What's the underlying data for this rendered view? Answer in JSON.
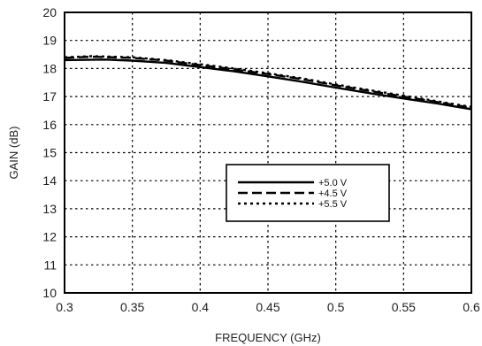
{
  "chart_data": {
    "type": "line",
    "title": "",
    "xlabel": "FREQUENCY (GHz)",
    "ylabel": "GAIN (dB)",
    "xlim": [
      0.3,
      0.6
    ],
    "ylim": [
      10,
      20
    ],
    "xticks": [
      0.3,
      0.35,
      0.4,
      0.45,
      0.5,
      0.55,
      0.6
    ],
    "xtick_labels": [
      "0.3",
      "0.35",
      "0.4",
      "0.45",
      "0.5",
      "0.55",
      "0.6"
    ],
    "yticks": [
      10,
      11,
      12,
      13,
      14,
      15,
      16,
      17,
      18,
      19,
      20
    ],
    "ytick_labels": [
      "10",
      "11",
      "12",
      "13",
      "14",
      "15",
      "16",
      "17",
      "18",
      "19",
      "20"
    ],
    "grid": "dotted",
    "legend_position": "center-right",
    "series": [
      {
        "name": "+5.0 V",
        "style": "solid",
        "x": [
          0.3,
          0.33,
          0.35,
          0.375,
          0.4,
          0.425,
          0.45,
          0.475,
          0.5,
          0.525,
          0.55,
          0.575,
          0.6
        ],
        "y": [
          18.3,
          18.32,
          18.28,
          18.2,
          18.05,
          17.9,
          17.72,
          17.53,
          17.32,
          17.12,
          16.93,
          16.75,
          16.55
        ]
      },
      {
        "name": "+4.5 V",
        "style": "dashed",
        "x": [
          0.3,
          0.32,
          0.35,
          0.375,
          0.4,
          0.425,
          0.45,
          0.475,
          0.5,
          0.525,
          0.55,
          0.575,
          0.6
        ],
        "y": [
          18.38,
          18.42,
          18.38,
          18.28,
          18.12,
          17.97,
          17.8,
          17.62,
          17.4,
          17.2,
          17.0,
          16.8,
          16.6
        ]
      },
      {
        "name": "+5.5 V",
        "style": "dotted",
        "x": [
          0.3,
          0.32,
          0.35,
          0.375,
          0.4,
          0.425,
          0.45,
          0.475,
          0.5,
          0.525,
          0.55,
          0.575,
          0.6
        ],
        "y": [
          18.4,
          18.44,
          18.4,
          18.3,
          18.15,
          18.0,
          17.83,
          17.65,
          17.43,
          17.23,
          17.03,
          16.83,
          16.63
        ]
      }
    ]
  }
}
